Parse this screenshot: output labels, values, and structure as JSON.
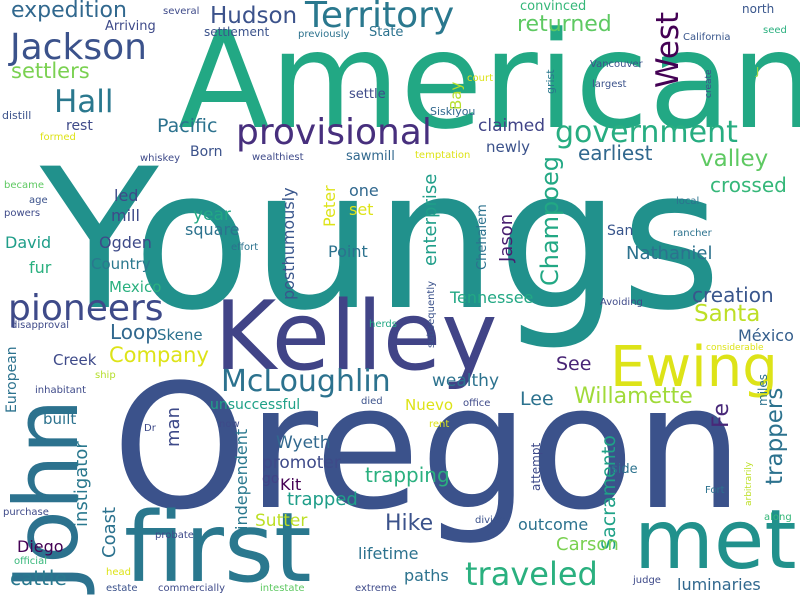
{
  "word_cloud": {
    "words": [
      {
        "text": "Youngs",
        "color": "#21918c"
      },
      {
        "text": "American",
        "color": "#22a884"
      },
      {
        "text": "Oregon",
        "color": "#3b528b"
      },
      {
        "text": "Kelley",
        "color": "#414487"
      },
      {
        "text": "first",
        "color": "#2a788e"
      },
      {
        "text": "met",
        "color": "#21918c"
      },
      {
        "text": "John",
        "color": "#2c728e"
      },
      {
        "text": "Ewing",
        "color": "#dde318"
      },
      {
        "text": "provisional",
        "color": "#472f7d"
      },
      {
        "text": "Territory",
        "color": "#2a788e"
      },
      {
        "text": "pioneers",
        "color": "#3e4a89"
      },
      {
        "text": "Jackson",
        "color": "#3b528b"
      },
      {
        "text": "government",
        "color": "#27ad81"
      },
      {
        "text": "McLoughlin",
        "color": "#2c728e"
      },
      {
        "text": "traveled",
        "color": "#2ab07f"
      },
      {
        "text": "West",
        "color": "#440154"
      },
      {
        "text": "Hall",
        "color": "#2a788e"
      },
      {
        "text": "expedition",
        "color": "#31688e"
      },
      {
        "text": "Hudson",
        "color": "#3b528b"
      },
      {
        "text": "settlers",
        "color": "#7ad151"
      },
      {
        "text": "returned",
        "color": "#5ec962"
      },
      {
        "text": "Willamette",
        "color": "#a0da39"
      },
      {
        "text": "Champoeg",
        "color": "#22a884"
      },
      {
        "text": "valley",
        "color": "#5ec962"
      },
      {
        "text": "Santa",
        "color": "#bddf26"
      },
      {
        "text": "Company",
        "color": "#dde318"
      },
      {
        "text": "Loop",
        "color": "#31688e"
      },
      {
        "text": "Pacific",
        "color": "#2c728e"
      },
      {
        "text": "claimed",
        "color": "#414487"
      },
      {
        "text": "earliest",
        "color": "#31688e"
      },
      {
        "text": "crossed",
        "color": "#35b779"
      },
      {
        "text": "creation",
        "color": "#39568c"
      },
      {
        "text": "trapping",
        "color": "#2ab07f"
      },
      {
        "text": "Sacramento",
        "color": "#1fa187"
      },
      {
        "text": "trappers",
        "color": "#2c728e"
      },
      {
        "text": "Hike",
        "color": "#3b528b"
      },
      {
        "text": "Carson",
        "color": "#7ad151"
      },
      {
        "text": "Fe",
        "color": "#482878"
      },
      {
        "text": "Nathaniel",
        "color": "#2c728e"
      },
      {
        "text": "Jason",
        "color": "#481f70"
      },
      {
        "text": "enterprise",
        "color": "#1f9e89"
      },
      {
        "text": "posthumously",
        "color": "#39568c"
      },
      {
        "text": "independent",
        "color": "#2a788e"
      },
      {
        "text": "lifetime",
        "color": "#2c728e"
      },
      {
        "text": "outcome",
        "color": "#2c728e"
      },
      {
        "text": "paths",
        "color": "#2c728e"
      },
      {
        "text": "luminaries",
        "color": "#31688e"
      },
      {
        "text": "cattle",
        "color": "#2a788e"
      },
      {
        "text": "Diego",
        "color": "#440154"
      },
      {
        "text": "Coast",
        "color": "#2c728e"
      },
      {
        "text": "instigator",
        "color": "#2a788e"
      },
      {
        "text": "man",
        "color": "#3e4a89"
      },
      {
        "text": "Wyeth",
        "color": "#31688e"
      },
      {
        "text": "promoter",
        "color": "#3e4a89"
      },
      {
        "text": "Kit",
        "color": "#440154"
      },
      {
        "text": "trapped",
        "color": "#1f9e89"
      },
      {
        "text": "go",
        "color": "#414487"
      },
      {
        "text": "Sutter",
        "color": "#bddf26"
      },
      {
        "text": "Nuevo",
        "color": "#dde318"
      },
      {
        "text": "Lee",
        "color": "#2c728e"
      },
      {
        "text": "wealthy",
        "color": "#2c728e"
      },
      {
        "text": "See",
        "color": "#482475"
      },
      {
        "text": "México",
        "color": "#355f8d"
      },
      {
        "text": "Tennessee",
        "color": "#22a884"
      },
      {
        "text": "Point",
        "color": "#2c728e"
      },
      {
        "text": "Peter",
        "color": "#dde318"
      },
      {
        "text": "set",
        "color": "#dde318"
      },
      {
        "text": "one",
        "color": "#31688e"
      },
      {
        "text": "year",
        "color": "#22a884"
      },
      {
        "text": "square",
        "color": "#2c728e"
      },
      {
        "text": "led",
        "color": "#3e4a89"
      },
      {
        "text": "mill",
        "color": "#3e4a89"
      },
      {
        "text": "Ogden",
        "color": "#3e4a89"
      },
      {
        "text": "Country",
        "color": "#2a788e"
      },
      {
        "text": "David",
        "color": "#1f9e89"
      },
      {
        "text": "fur",
        "color": "#2ab07f"
      },
      {
        "text": "Mexico",
        "color": "#2ab07f"
      },
      {
        "text": "Skene",
        "color": "#2c728e"
      },
      {
        "text": "Creek",
        "color": "#3e4a89"
      },
      {
        "text": "European",
        "color": "#2c728e"
      },
      {
        "text": "built",
        "color": "#2c728e"
      },
      {
        "text": "unsuccessful",
        "color": "#1fa187"
      },
      {
        "text": "Born",
        "color": "#3b528b"
      },
      {
        "text": "rest",
        "color": "#3e4a89"
      },
      {
        "text": "newly",
        "color": "#3b528b"
      },
      {
        "text": "sawmill",
        "color": "#31688e"
      },
      {
        "text": "settle",
        "color": "#3e4a89"
      },
      {
        "text": "State",
        "color": "#2c728e"
      },
      {
        "text": "Bay",
        "color": "#b5de2b"
      },
      {
        "text": "San",
        "color": "#39568c"
      },
      {
        "text": "Arriving",
        "color": "#3e4a89"
      },
      {
        "text": "settlement",
        "color": "#3b528b"
      },
      {
        "text": "convinced",
        "color": "#35b779"
      },
      {
        "text": "north",
        "color": "#39568c"
      },
      {
        "text": "several",
        "color": "#3e4a89"
      },
      {
        "text": "previously",
        "color": "#2c728e"
      },
      {
        "text": "California",
        "color": "#39568c"
      },
      {
        "text": "seed",
        "color": "#2ab07f"
      },
      {
        "text": "Vancouver",
        "color": "#3b528b"
      },
      {
        "text": "largest",
        "color": "#3b528b"
      },
      {
        "text": "court",
        "color": "#dde318"
      },
      {
        "text": "grist",
        "color": "#2a788e"
      },
      {
        "text": "J",
        "color": "#a0da39"
      },
      {
        "text": "create",
        "color": "#3b528b"
      },
      {
        "text": "Siskiyou",
        "color": "#31688e"
      },
      {
        "text": "distill",
        "color": "#3b528b"
      },
      {
        "text": "formed",
        "color": "#dde318"
      },
      {
        "text": "whiskey",
        "color": "#3e4a89"
      },
      {
        "text": "wealthiest",
        "color": "#3e4a89"
      },
      {
        "text": "temptation",
        "color": "#dde318"
      },
      {
        "text": "became",
        "color": "#5ec962"
      },
      {
        "text": "age",
        "color": "#3b528b"
      },
      {
        "text": "powers",
        "color": "#3e4a89"
      },
      {
        "text": "effort",
        "color": "#2c728e"
      },
      {
        "text": "local",
        "color": "#2c728e"
      },
      {
        "text": "rancher",
        "color": "#2c728e"
      },
      {
        "text": "Chehalem",
        "color": "#2c728e"
      },
      {
        "text": "Avoiding",
        "color": "#3e4a89"
      },
      {
        "text": "considerable",
        "color": "#dde318"
      },
      {
        "text": "disapproval",
        "color": "#3e4a89"
      },
      {
        "text": "herds",
        "color": "#22a884"
      },
      {
        "text": "subsequently",
        "color": "#3b528b"
      },
      {
        "text": "inhabitant",
        "color": "#3e4a89"
      },
      {
        "text": "ship",
        "color": "#b5de2b"
      },
      {
        "text": "died",
        "color": "#3b528b"
      },
      {
        "text": "office",
        "color": "#3e4a89"
      },
      {
        "text": "Dr",
        "color": "#3e4a89"
      },
      {
        "text": "now",
        "color": "#3e4a89"
      },
      {
        "text": "rent",
        "color": "#dde318"
      },
      {
        "text": "miles",
        "color": "#2c728e"
      },
      {
        "text": "attempt",
        "color": "#3e4a89"
      },
      {
        "text": "side",
        "color": "#2c728e"
      },
      {
        "text": "arbitrarily",
        "color": "#bddf26"
      },
      {
        "text": "Fort",
        "color": "#2c728e"
      },
      {
        "text": "along",
        "color": "#35b779"
      },
      {
        "text": "purchase",
        "color": "#3e4a89"
      },
      {
        "text": "official",
        "color": "#35b779"
      },
      {
        "text": "divide",
        "color": "#3b528b"
      },
      {
        "text": "head",
        "color": "#dde318"
      },
      {
        "text": "probate",
        "color": "#3e4a89"
      },
      {
        "text": "estate",
        "color": "#3b528b"
      },
      {
        "text": "commercially",
        "color": "#3e4a89"
      },
      {
        "text": "intestate",
        "color": "#5ec962"
      },
      {
        "text": "extreme",
        "color": "#3e4a89"
      },
      {
        "text": "judge",
        "color": "#3e4a89"
      }
    ]
  }
}
